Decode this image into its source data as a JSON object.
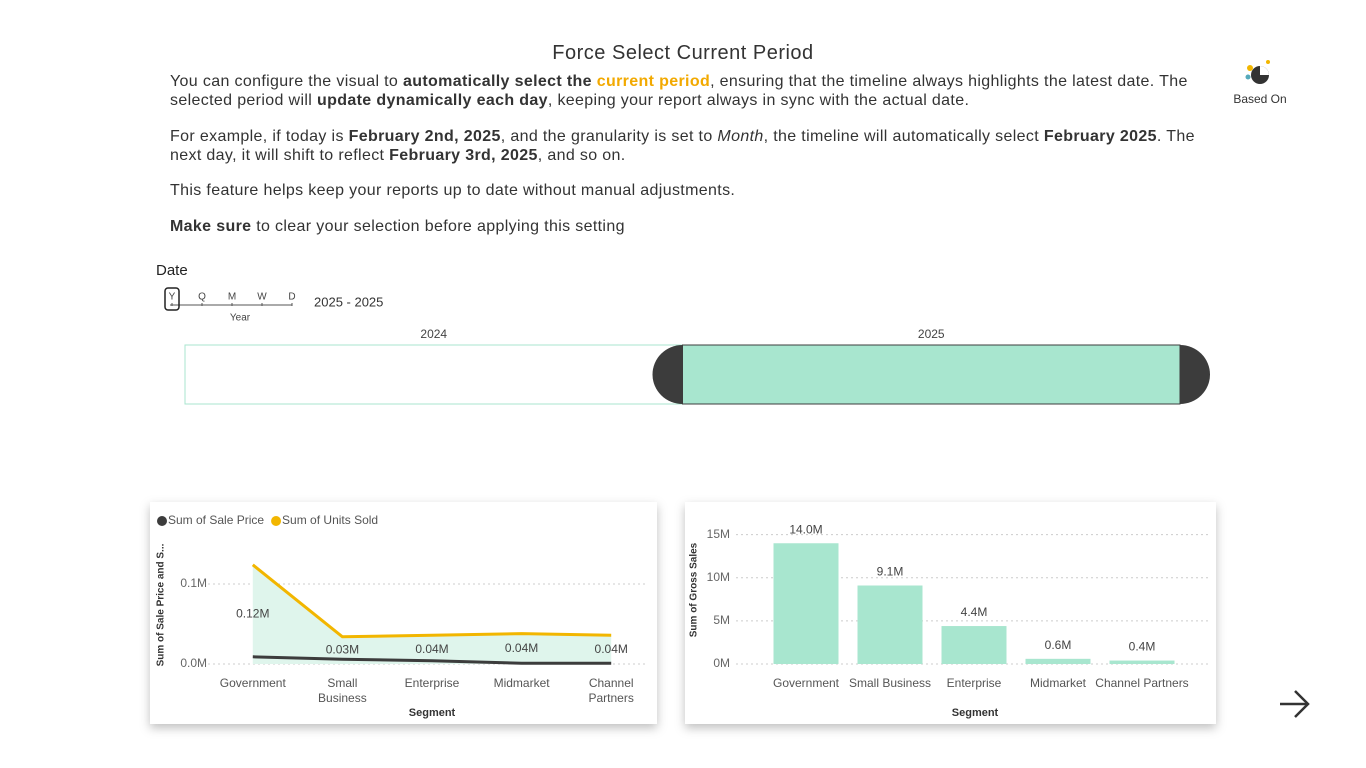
{
  "header": {
    "title": "Force Select Current Period"
  },
  "paragraphs": [
    [
      {
        "text": "You can configure the visual to "
      },
      {
        "text": "automatically select the ",
        "bold": true
      },
      {
        "text": "current period",
        "bold": true,
        "color": "#f2a900"
      },
      {
        "text": ", ensuring that the timeline always highlights the latest date. The selected period will "
      },
      {
        "text": "update dynamically each day",
        "bold": true
      },
      {
        "text": ", keeping your report always in sync with the actual date."
      }
    ],
    [
      {
        "text": "For example, if today is "
      },
      {
        "text": "February 2nd, 2025",
        "bold": true
      },
      {
        "text": ", and the granularity is set to "
      },
      {
        "text": "Month",
        "italic": true
      },
      {
        "text": ", the timeline will automatically select "
      },
      {
        "text": "February 2025",
        "bold": true
      },
      {
        "text": ". The next day, it will shift to reflect "
      },
      {
        "text": "February 3rd, 2025",
        "bold": true
      },
      {
        "text": ", and so on."
      }
    ],
    [
      {
        "text": "This feature helps keep your reports up to date without manual adjustments."
      }
    ],
    [
      {
        "text": "Make sure",
        "bold": true
      },
      {
        "text": " to clear your selection before applying this setting"
      }
    ]
  ],
  "logo": {
    "label": "Based On"
  },
  "timeline": {
    "label": "Date",
    "granularities": [
      "Y",
      "Q",
      "M",
      "W",
      "D"
    ],
    "granularity_index": 0,
    "granularity_label": "Year",
    "range": "2025 - 2025",
    "periods": [
      "2024",
      "2025"
    ],
    "selected_index": 1
  },
  "chart_data": [
    {
      "type": "area",
      "y_label": "Sum of Sale Price and S...",
      "x_label": "Segment",
      "categories": [
        "Government",
        "Small Business",
        "Enterprise",
        "Midmarket",
        "Channel Partners"
      ],
      "series": [
        {
          "name": "Sum of Sale Price",
          "color": "#3c3c3c",
          "values": [
            9000,
            6000,
            4000,
            1000,
            1000
          ]
        },
        {
          "name": "Sum of Units Sold",
          "color": "#f2b600",
          "fill": "#dff5ec",
          "values": [
            124000,
            34000,
            36000,
            38000,
            36000
          ],
          "value_labels": [
            "0.12M",
            "0.03M",
            "0.04M",
            "0.04M",
            "0.04M"
          ]
        }
      ],
      "ylim": [
        0,
        150000
      ],
      "yticks": [
        {
          "value": 0,
          "label": "0.0M"
        },
        {
          "value": 100000,
          "label": "0.1M"
        }
      ],
      "grid": true
    },
    {
      "type": "bar",
      "y_label": "Sum of Gross Sales",
      "x_label": "Segment",
      "categories": [
        "Government",
        "Small Business",
        "Enterprise",
        "Midmarket",
        "Channel Partners"
      ],
      "values": [
        14000000,
        9100000,
        4400000,
        600000,
        400000
      ],
      "value_labels": [
        "14.0M",
        "9.1M",
        "4.4M",
        "0.6M",
        "0.4M"
      ],
      "color": "#a8e6cf",
      "ylim": [
        0,
        16000000
      ],
      "yticks": [
        {
          "value": 0,
          "label": "0M"
        },
        {
          "value": 5000000,
          "label": "5M"
        },
        {
          "value": 10000000,
          "label": "10M"
        },
        {
          "value": 15000000,
          "label": "15M"
        }
      ],
      "grid": true
    }
  ]
}
